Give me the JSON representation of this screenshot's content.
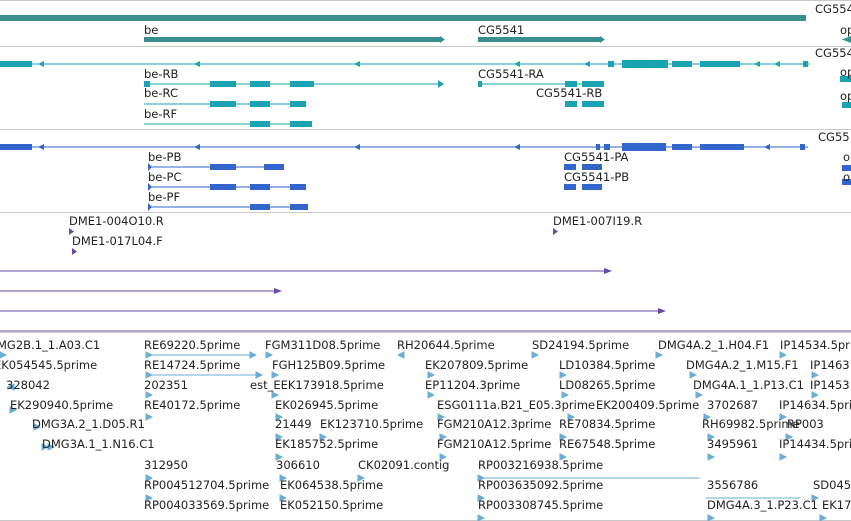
{
  "colors": {
    "gene": "#3a8f8f",
    "transcript_teal": "#1aa3b3",
    "protein_blue": "#3366cc",
    "oligo_purple": "#6a4aa5",
    "est_lightblue": "#6aaed6",
    "separator": "#c8c8c8"
  },
  "gene_track": {
    "labels": [
      {
        "text": "be"
      },
      {
        "text": "CG5541"
      },
      {
        "text": "CG554"
      },
      {
        "text": "op"
      }
    ]
  },
  "transcript_track": {
    "labels": [
      {
        "text": "be-RB"
      },
      {
        "text": "be-RC"
      },
      {
        "text": "be-RF"
      },
      {
        "text": "CG5541-RA"
      },
      {
        "text": "CG5541-RB"
      },
      {
        "text": "CG554"
      },
      {
        "text": "op"
      },
      {
        "text": "op"
      }
    ]
  },
  "protein_track": {
    "labels": [
      {
        "text": "be-PB"
      },
      {
        "text": "be-PC"
      },
      {
        "text": "be-PF"
      },
      {
        "text": "CG5541-PA"
      },
      {
        "text": "CG5541-PB"
      },
      {
        "text": "CG55"
      },
      {
        "text": "o"
      },
      {
        "text": "o"
      }
    ]
  },
  "oligo_track": {
    "labels": [
      {
        "text": "DME1-004O10.R"
      },
      {
        "text": "DME1-017L04.F"
      },
      {
        "text": "DME1-007I19.R"
      }
    ]
  },
  "est_track": {
    "labels": [
      "MG2B.1_1.A03.C1",
      "EK054545.5prime",
      "328042",
      "EK290940.5prime",
      "DMG3A.2_1.D05.R1",
      "DMG3A.1_1.N16.C1",
      "RE69220.5prime",
      "RE14724.5prime",
      "202351",
      "RE40172.5prime",
      "312950",
      "RP004512704.5prime",
      "RP004033569.5prime",
      "FGM311D08.5prime",
      "FGH125B09.5prime",
      "est_EEK173918.5prime",
      "EK026945.5prime",
      "21449",
      "EK185752.5prime",
      "306610",
      "EK064538.5prime",
      "EK052150.5prime",
      "EK123710.5prime",
      "CK02091.contig",
      "RH20644.5prime",
      "EK207809.5prime",
      "EP11204.3prime",
      "ESG0111a.B21_E05.3prime",
      "FGM210A12.3prime",
      "FGM210A12.5prime",
      "SD24194.5prime",
      "LD10384.5prime",
      "LD08265.5prime",
      "RE70834.5prime",
      "RE67548.5prime",
      "RP003216938.5prime",
      "RP003635092.5prime",
      "RP003308745.5prime",
      "DMG4A.2_1.H04.F1",
      "DMG4A.2_1.M15.F1",
      "DMG4A.1_1.P13.C1",
      "EK200409.5prime",
      "3702687",
      "RH69982.5prime",
      "3495961",
      "3556786",
      "DMG4A.3_1.P23.C1",
      "IP14534.5prime",
      "IP1463",
      "IP1453",
      "IP14634.5prime",
      "RP003",
      "IP14434.5prime",
      "SD045",
      "EK17"
    ]
  }
}
